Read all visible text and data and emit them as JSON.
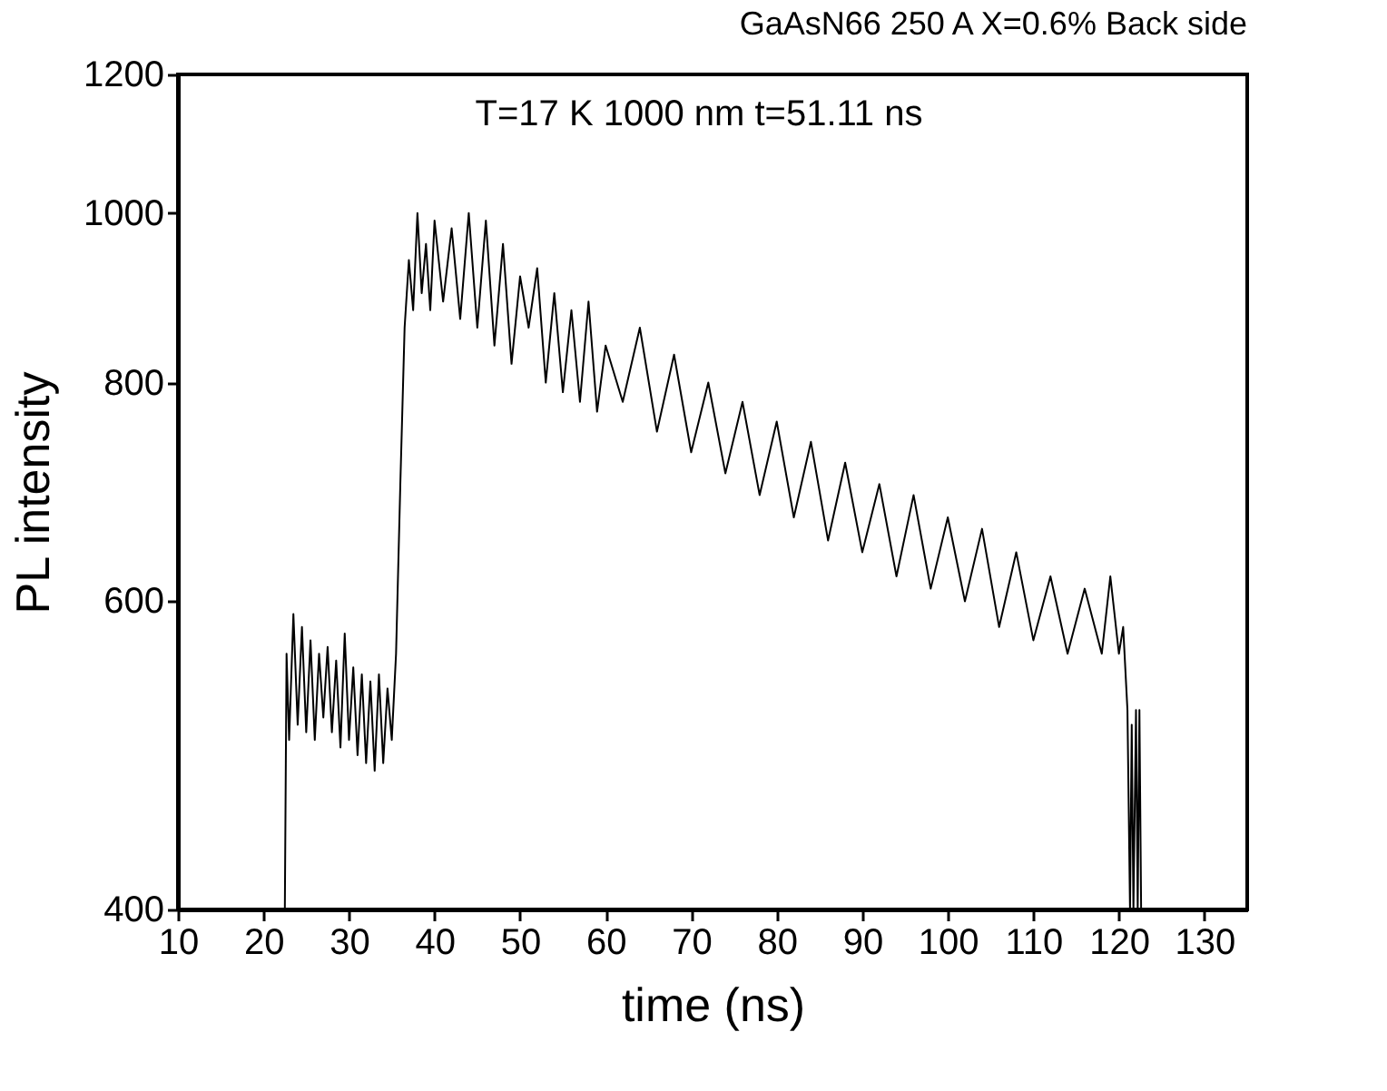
{
  "chart_data": {
    "type": "line",
    "title": "GaAsN66 250 A X=0.6% Back side",
    "xlabel": "time (ns)",
    "ylabel": "PL intensity",
    "annotations": [
      "T=17 K 1000 nm t=51.11 ns"
    ],
    "log": "y",
    "xlim": [
      10,
      135
    ],
    "ylim": [
      400,
      1200
    ],
    "xticks": [
      10,
      20,
      30,
      40,
      50,
      60,
      70,
      80,
      90,
      100,
      110,
      120,
      130
    ],
    "yticks": [
      400,
      600,
      800,
      1000,
      1200
    ],
    "grid": false,
    "legend": false,
    "marker": "none",
    "line_style": "solid",
    "series": [
      {
        "color": "#000000",
        "x": [
          22.5,
          22.7,
          23.0,
          23.5,
          24.0,
          24.5,
          25.0,
          25.5,
          26.0,
          26.5,
          27.0,
          27.5,
          28.0,
          28.5,
          29.0,
          29.5,
          30.0,
          30.5,
          31.0,
          31.5,
          32.0,
          32.5,
          33.0,
          33.5,
          34.0,
          34.5,
          35.0,
          35.5,
          36.0,
          36.5,
          37.0,
          37.5,
          38.0,
          38.5,
          39.0,
          39.5,
          40.0,
          41.0,
          42.0,
          43.0,
          44.0,
          45.0,
          46.0,
          47.0,
          48.0,
          49.0,
          50.0,
          51.0,
          52.0,
          53.0,
          54.0,
          55.0,
          56.0,
          57.0,
          58.0,
          59.0,
          60.0,
          62.0,
          64.0,
          66.0,
          68.0,
          70.0,
          72.0,
          74.0,
          76.0,
          78.0,
          80.0,
          82.0,
          84.0,
          86.0,
          88.0,
          90.0,
          92.0,
          94.0,
          96.0,
          98.0,
          100.0,
          102.0,
          104.0,
          106.0,
          108.0,
          110.0,
          112.0,
          114.0,
          116.0,
          118.0,
          119.0,
          120.0,
          120.5,
          121.0,
          121.3,
          121.5,
          121.7,
          122.0,
          122.2,
          122.4,
          122.6
        ],
        "values": [
          400,
          560,
          500,
          590,
          510,
          580,
          505,
          570,
          500,
          560,
          515,
          565,
          505,
          555,
          495,
          575,
          500,
          550,
          490,
          545,
          485,
          540,
          480,
          545,
          485,
          535,
          500,
          560,
          700,
          860,
          940,
          880,
          1000,
          900,
          960,
          880,
          990,
          890,
          980,
          870,
          1000,
          860,
          990,
          840,
          960,
          820,
          920,
          860,
          930,
          800,
          900,
          790,
          880,
          780,
          890,
          770,
          840,
          780,
          860,
          750,
          830,
          730,
          800,
          710,
          780,
          690,
          760,
          670,
          740,
          650,
          720,
          640,
          700,
          620,
          690,
          610,
          670,
          600,
          660,
          580,
          640,
          570,
          620,
          560,
          610,
          560,
          620,
          560,
          580,
          520,
          400,
          510,
          400,
          520,
          400,
          520,
          400
        ]
      }
    ]
  }
}
